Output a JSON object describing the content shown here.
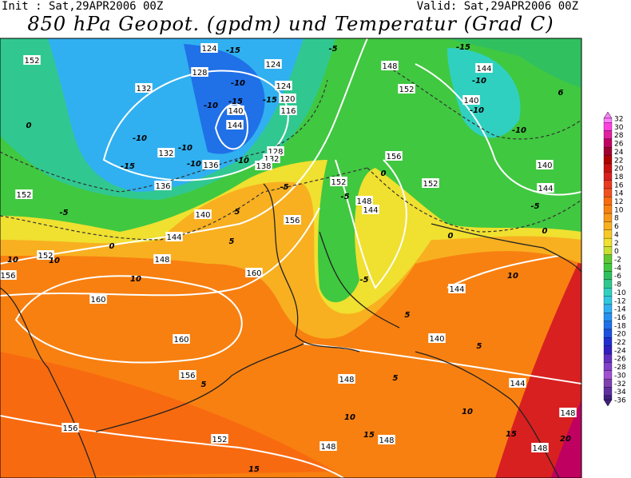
{
  "header": {
    "init": "Init : Sat,29APR2006 00Z",
    "valid": "Valid: Sat,29APR2006 00Z",
    "title": "850 hPa Geopot. (gpdm) und Temperatur (Grad C)"
  },
  "colorbar": {
    "levels": [
      32,
      30,
      28,
      26,
      24,
      22,
      20,
      18,
      16,
      14,
      12,
      10,
      8,
      6,
      4,
      2,
      0,
      -2,
      -4,
      -6,
      -8,
      -10,
      -12,
      -14,
      -16,
      -18,
      -20,
      -22,
      -24,
      -26,
      -28,
      -30,
      -32,
      -34,
      -36
    ],
    "colors": [
      "#ff80ff",
      "#ff40e0",
      "#e020a0",
      "#c00060",
      "#a00030",
      "#b00000",
      "#c81010",
      "#d82020",
      "#e83a20",
      "#f05020",
      "#f86a10",
      "#f88010",
      "#f89818",
      "#f8b020",
      "#f8c828",
      "#f0e030",
      "#c8e030",
      "#60c830",
      "#40c840",
      "#30c060",
      "#30c890",
      "#30d0c0",
      "#30c8e0",
      "#30b0f0",
      "#2890f0",
      "#2070e8",
      "#2050e0",
      "#2030d0",
      "#3020c0",
      "#6030c0",
      "#8040c8",
      "#a050d0",
      "#8040b0",
      "#6030a0",
      "#402080"
    ]
  },
  "map": {
    "labels": [
      "152",
      "132",
      "128",
      "124",
      "-15",
      "124",
      "-10",
      "124",
      "-15",
      "120",
      "-15",
      "140",
      "-10",
      "144",
      "116",
      "-10",
      "-10",
      "132",
      "-15",
      "-10",
      "136",
      "-10",
      "128",
      "132",
      "138",
      "136",
      "152",
      "-5",
      "140",
      "144",
      "0",
      "10",
      "152",
      "10",
      "148",
      "156",
      "10",
      "160",
      "160",
      "156",
      "152",
      "-5",
      "148",
      "144",
      "0",
      "152",
      "156",
      "148",
      "152",
      "144",
      "-10",
      "-10",
      "140",
      "-10",
      "140",
      "144",
      "-5",
      "0",
      "0",
      "-5",
      "10",
      "144",
      "5",
      "140",
      "5",
      "160",
      "156",
      "144",
      "148",
      "5",
      "10",
      "10",
      "15",
      "148",
      "148",
      "152",
      "156",
      "15",
      "15",
      "148",
      "148",
      "20",
      "-5",
      "6",
      "-15",
      "0",
      "5",
      "5",
      "-5",
      "5"
    ]
  }
}
